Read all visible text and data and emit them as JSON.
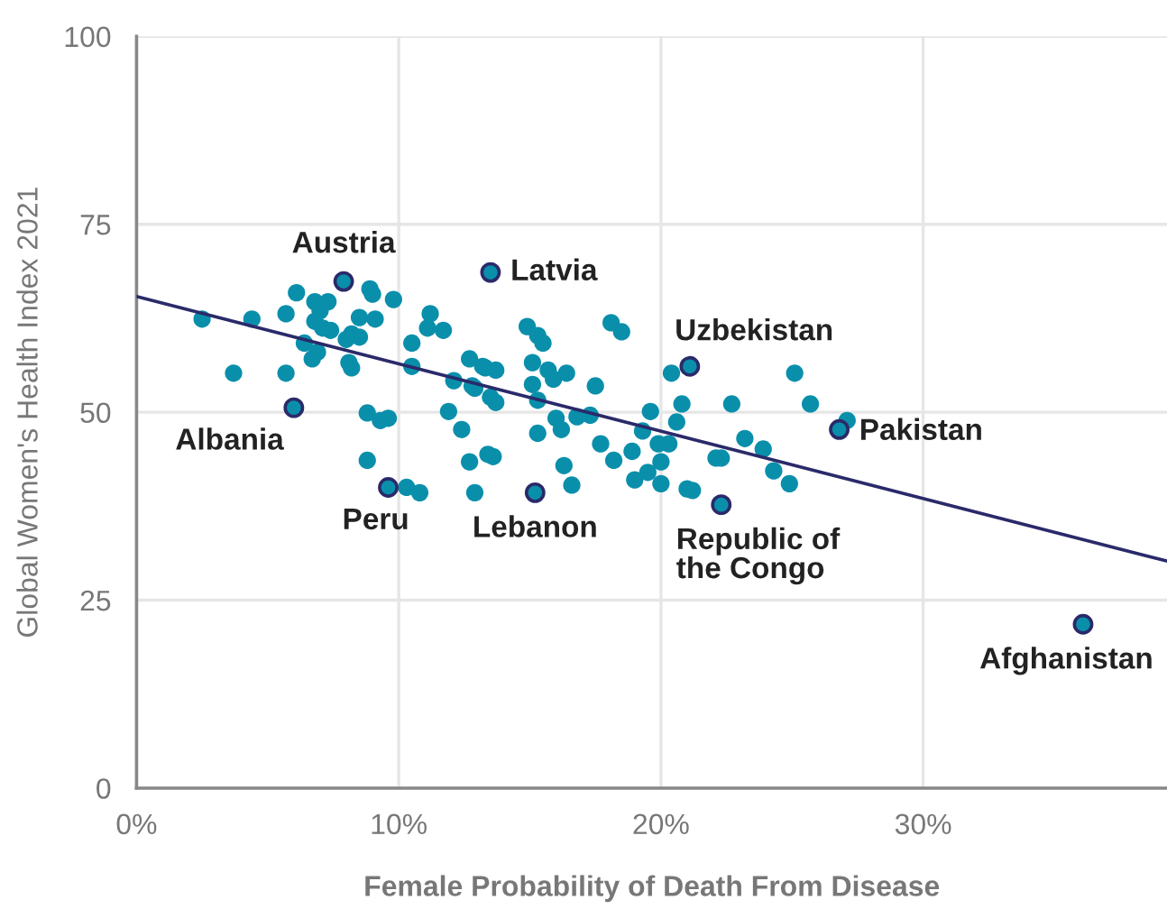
{
  "chart_data": {
    "type": "scatter",
    "xlabel": "Female Probability of Death From Disease",
    "ylabel": "Global Women's Health Index 2021",
    "xlim": [
      0,
      39.3
    ],
    "ylim": [
      0,
      100
    ],
    "xticks": [
      {
        "value": 0,
        "label": "0%"
      },
      {
        "value": 10,
        "label": "10%"
      },
      {
        "value": 20,
        "label": "20%"
      },
      {
        "value": 30,
        "label": "30%"
      }
    ],
    "yticks": [
      0,
      25,
      50,
      75,
      100
    ],
    "grid": true,
    "marker": "circle",
    "series": [
      {
        "type": "line",
        "marker": "none",
        "color": "#2a2a6a",
        "x": [
          0,
          39.3
        ],
        "values": [
          65.4,
          30.2
        ]
      },
      {
        "color": "#0a8fab",
        "x": [
          2.5,
          3.7,
          4.4,
          5.7,
          6.1,
          6.8,
          7.3,
          7.0,
          6.8,
          7.1,
          7.4,
          6.4,
          6.9,
          6.7,
          5.7,
          8.2,
          8.5,
          8.5,
          8.0,
          9.1,
          8.9,
          9.0,
          9.8,
          8.1,
          8.2,
          10.5,
          10.5,
          11.2,
          11.1,
          11.7,
          12.7,
          12.1,
          12.9,
          13.3,
          13.7,
          13.5,
          13.7,
          8.8,
          9.3,
          9.6,
          11.9,
          12.4,
          8.8,
          12.7,
          13.4,
          13.6,
          10.3,
          10.8,
          12.9,
          13.2,
          12.8,
          14.9,
          15.3,
          15.5,
          18.1,
          18.5,
          15.1,
          15.1,
          15.3,
          15.7,
          15.9,
          16.4,
          17.5,
          16.0,
          16.2,
          16.8,
          17.3,
          15.3,
          16.3,
          16.6,
          17.7,
          18.2,
          18.9,
          19.0,
          19.5,
          19.6,
          19.3,
          19.9,
          20.3,
          20.0,
          20.0,
          20.4,
          20.8,
          20.6,
          21.0,
          21.2,
          22.1,
          22.3,
          22.7,
          23.2,
          23.9,
          24.3,
          24.9,
          25.1,
          25.7,
          27.1
        ],
        "values": [
          62.4,
          55.2,
          62.4,
          63.1,
          65.9,
          64.7,
          64.7,
          63.5,
          62.1,
          61.2,
          60.9,
          59.2,
          58.0,
          57.1,
          55.2,
          60.4,
          62.6,
          60.0,
          59.7,
          62.4,
          66.4,
          65.7,
          65.0,
          56.6,
          55.9,
          59.2,
          56.1,
          63.1,
          61.2,
          60.9,
          57.1,
          54.2,
          53.2,
          55.9,
          55.6,
          52.0,
          51.3,
          49.9,
          48.9,
          49.2,
          50.1,
          47.7,
          43.6,
          43.4,
          44.4,
          44.1,
          40.0,
          39.3,
          39.3,
          56.1,
          53.5,
          61.4,
          60.2,
          59.2,
          61.9,
          60.7,
          56.6,
          53.7,
          51.6,
          55.6,
          54.4,
          55.2,
          53.5,
          49.2,
          47.7,
          49.4,
          49.6,
          47.2,
          42.9,
          40.3,
          45.8,
          43.6,
          44.8,
          41.0,
          42.0,
          50.1,
          47.5,
          45.8,
          45.8,
          43.4,
          40.5,
          55.2,
          51.1,
          48.7,
          39.8,
          39.6,
          43.9,
          43.9,
          51.1,
          46.5,
          45.1,
          42.2,
          40.5,
          55.2,
          51.1,
          48.9
        ]
      },
      {
        "color": "#0a8fab",
        "x": [
          7.9,
          13.5,
          21.1,
          6.0,
          9.6,
          15.2,
          22.3,
          26.8,
          36.1
        ],
        "values": [
          67.4,
          68.6,
          56.1,
          50.6,
          40.0,
          39.3,
          37.7,
          47.7,
          21.8
        ]
      }
    ],
    "annotations": [
      {
        "text": "Austria",
        "x": 7.9,
        "y": 67.4
      },
      {
        "text": "Latvia",
        "x": 13.5,
        "y": 68.6
      },
      {
        "text": "Uzbekistan",
        "x": 21.1,
        "y": 56.1
      },
      {
        "text": "Albania",
        "x": 6.0,
        "y": 50.6
      },
      {
        "text": "Peru",
        "x": 9.6,
        "y": 40.0
      },
      {
        "text": "Lebanon",
        "x": 15.2,
        "y": 39.3
      },
      {
        "text": "Republic of\nthe Congo",
        "x": 22.3,
        "y": 37.7
      },
      {
        "text": "Pakistan",
        "x": 26.8,
        "y": 47.7
      },
      {
        "text": "Afghanistan",
        "x": 36.1,
        "y": 21.8
      }
    ]
  }
}
